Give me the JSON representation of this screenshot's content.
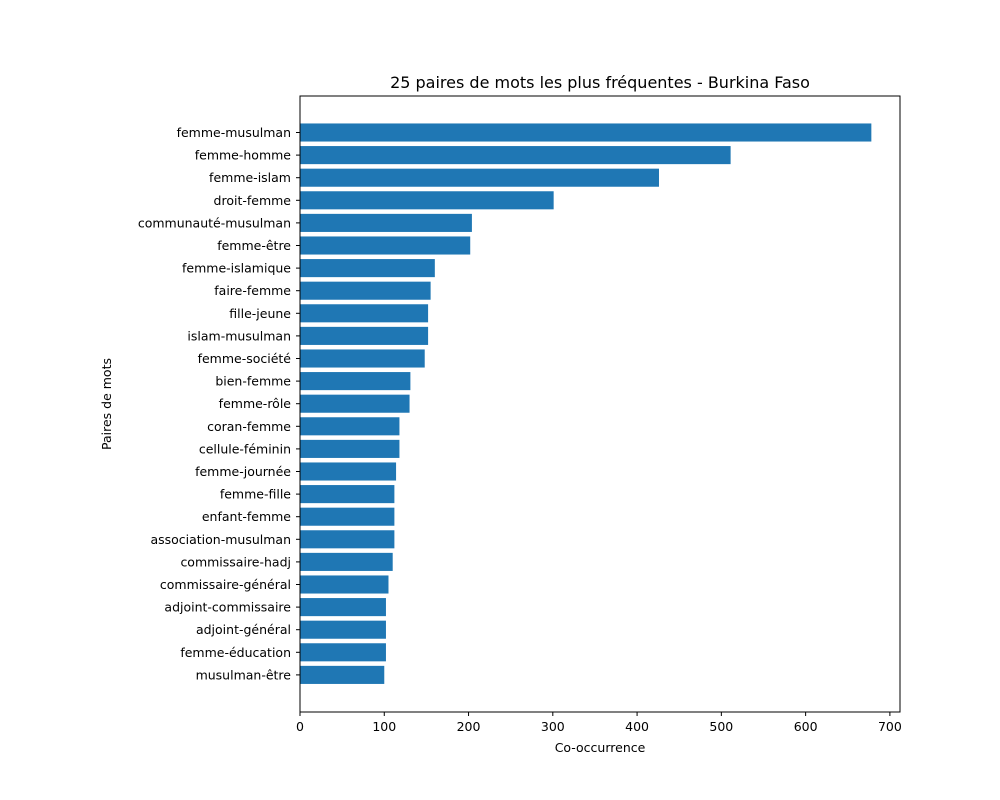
{
  "chart_data": {
    "type": "bar",
    "orientation": "horizontal",
    "title": "25 paires de mots les plus fréquentes - Burkina Faso",
    "xlabel": "Co-occurrence",
    "ylabel": "Paires de mots",
    "xlim": [
      0,
      712
    ],
    "xticks": [
      0,
      100,
      200,
      300,
      400,
      500,
      600,
      700
    ],
    "grid": false,
    "legend": "none",
    "bar_color": "#1f77b4",
    "categories": [
      "femme-musulman",
      "femme-homme",
      "femme-islam",
      "droit-femme",
      "communauté-musulman",
      "femme-être",
      "femme-islamique",
      "faire-femme",
      "fille-jeune",
      "islam-musulman",
      "femme-société",
      "bien-femme",
      "femme-rôle",
      "coran-femme",
      "cellule-féminin",
      "femme-journée",
      "femme-fille",
      "enfant-femme",
      "association-musulman",
      "commissaire-hadj",
      "commissaire-général",
      "adjoint-commissaire",
      "adjoint-général",
      "femme-éducation",
      "musulman-être"
    ],
    "values": [
      678,
      511,
      426,
      301,
      204,
      202,
      160,
      155,
      152,
      152,
      148,
      131,
      130,
      118,
      118,
      114,
      112,
      112,
      112,
      110,
      105,
      102,
      102,
      102,
      100
    ]
  }
}
